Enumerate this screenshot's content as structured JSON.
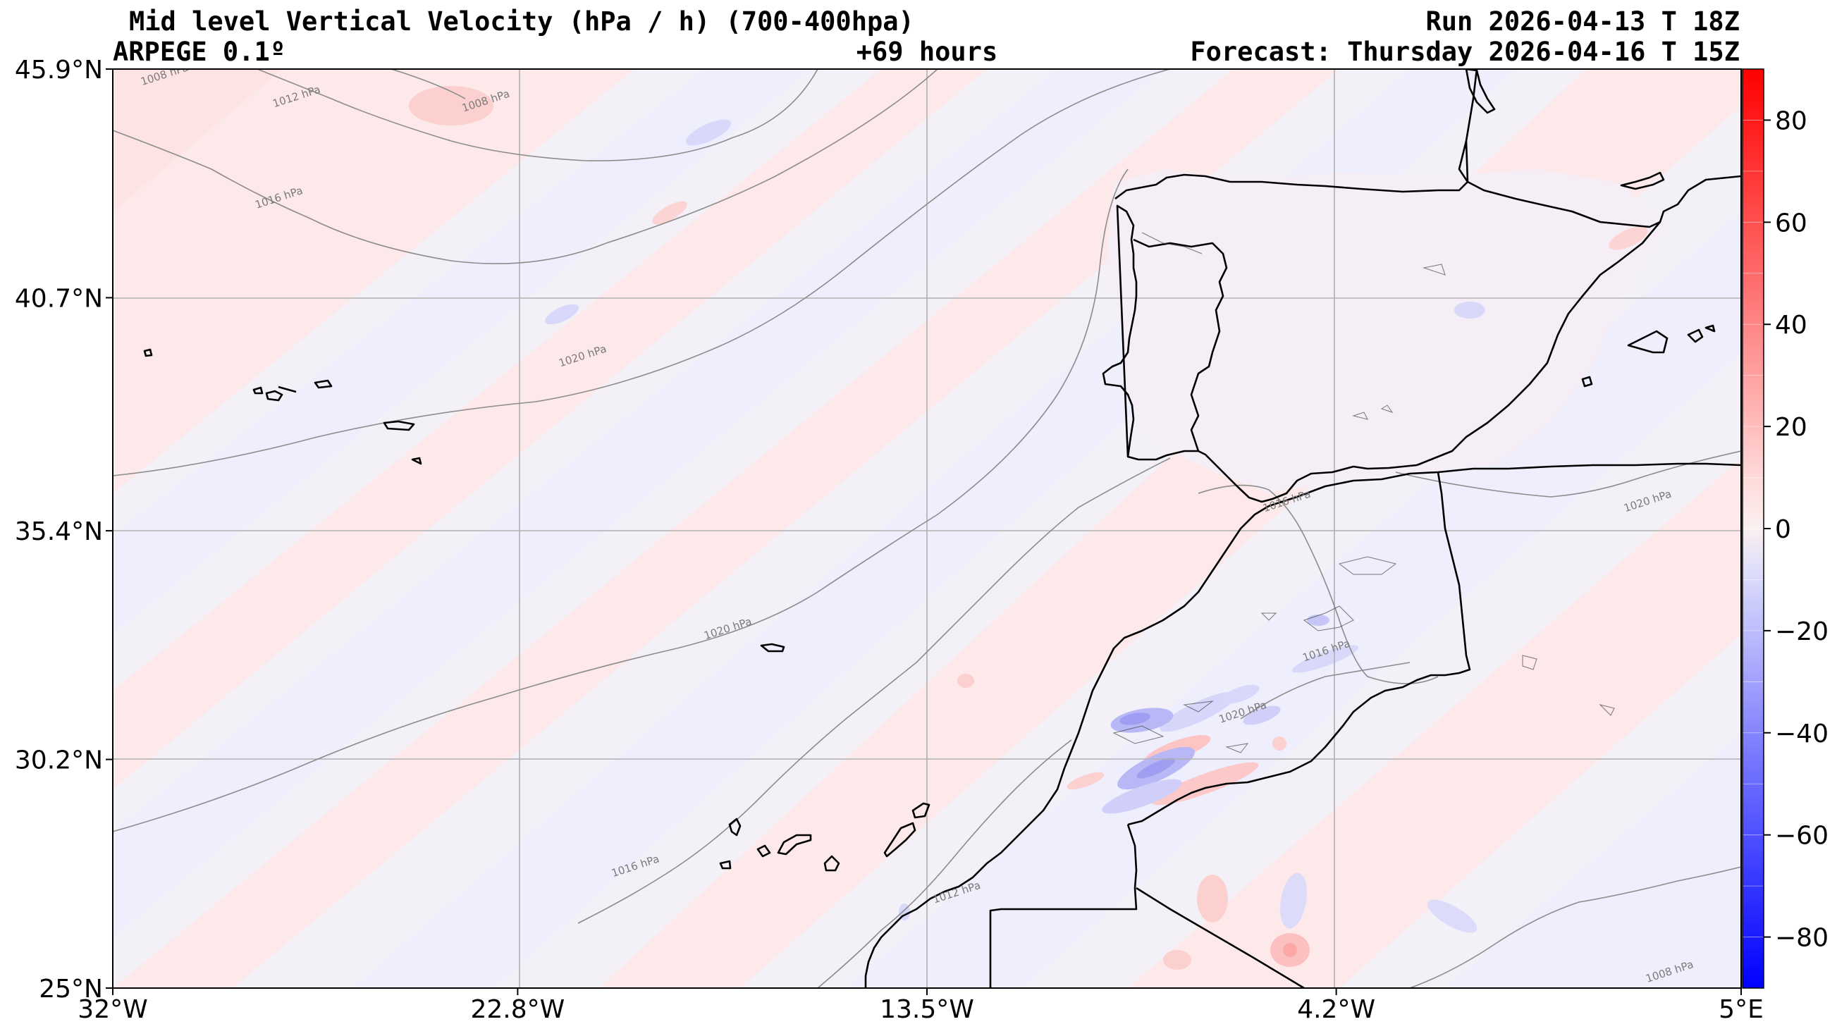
{
  "header": {
    "title": "Mid level Vertical Velocity (hPa / h)  (700-400hpa)",
    "model": "ARPEGE 0.1º",
    "lead_time": "+69 hours",
    "run": "Run 2026-04-13 T 18Z",
    "forecast": "Forecast: Thursday 2026-04-16 T 15Z"
  },
  "axes": {
    "lon_ticks": [
      {
        "value": -32.0,
        "label": "32°W"
      },
      {
        "value": -22.8,
        "label": "22.8°W"
      },
      {
        "value": -13.5,
        "label": "13.5°W"
      },
      {
        "value": -4.2,
        "label": "4.2°W"
      },
      {
        "value": 5.0,
        "label": "5°E"
      }
    ],
    "lat_ticks": [
      {
        "value": 45.9,
        "label": "45.9°N"
      },
      {
        "value": 40.7,
        "label": "40.7°N"
      },
      {
        "value": 35.4,
        "label": "35.4°N"
      },
      {
        "value": 30.2,
        "label": "30.2°N"
      },
      {
        "value": 25.0,
        "label": "25°N"
      }
    ],
    "lon_range": [
      -32.0,
      5.0
    ],
    "lat_range": [
      25.0,
      45.9
    ]
  },
  "colorbar": {
    "range": [
      -90,
      90
    ],
    "ticks": [
      {
        "value": 80,
        "label": "80"
      },
      {
        "value": 60,
        "label": "60"
      },
      {
        "value": 40,
        "label": "40"
      },
      {
        "value": 20,
        "label": "20"
      },
      {
        "value": 0,
        "label": "0"
      },
      {
        "value": -20,
        "label": "−20"
      },
      {
        "value": -40,
        "label": "−40"
      },
      {
        "value": -60,
        "label": "−60"
      },
      {
        "value": -80,
        "label": "−80"
      }
    ]
  },
  "isobar_labels": [
    {
      "text": "1008 hPa",
      "lon": -30.8,
      "lat": 45.7
    },
    {
      "text": "1012 hPa",
      "lon": -27.8,
      "lat": 45.2
    },
    {
      "text": "1016 hPa",
      "lon": -28.2,
      "lat": 42.9
    },
    {
      "text": "1008 hPa",
      "lon": -23.5,
      "lat": 45.1
    },
    {
      "text": "1020 hPa",
      "lon": -21.3,
      "lat": 39.3
    },
    {
      "text": "1020 hPa",
      "lon": -18.0,
      "lat": 33.1
    },
    {
      "text": "1016 hPa",
      "lon": -20.1,
      "lat": 27.7
    },
    {
      "text": "1012 hPa",
      "lon": -12.8,
      "lat": 27.1
    },
    {
      "text": "1016 hPa",
      "lon": -5.3,
      "lat": 36.0
    },
    {
      "text": "1016 hPa",
      "lon": -4.4,
      "lat": 32.6
    },
    {
      "text": "1020 hPa",
      "lon": -6.3,
      "lat": 31.2
    },
    {
      "text": "1020 hPa",
      "lon": 2.9,
      "lat": 36.0
    },
    {
      "text": "1008 hPa",
      "lon": 3.4,
      "lat": 25.3
    }
  ],
  "colors": {
    "positive_light": "#fde9e9",
    "negative_light": "#eeeefc",
    "isobar": "#8c8c8c",
    "coast": "#000000",
    "grid": "#b0b0b0"
  }
}
